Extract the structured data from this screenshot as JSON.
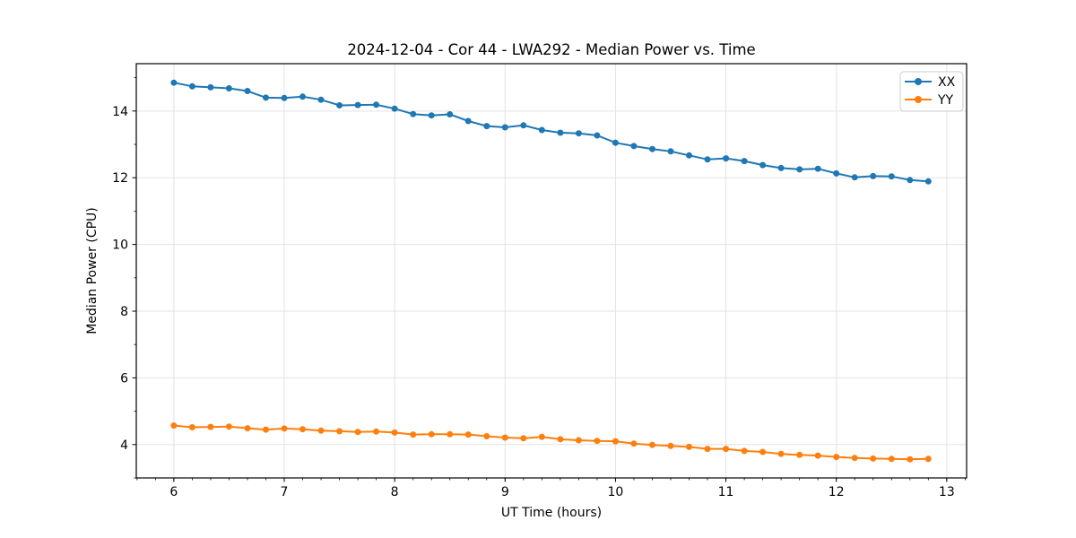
{
  "chart": {
    "title": "2024-12-04 - Cor 44 - LWA292 - Median Power vs. Time",
    "xlabel": "UT Time (hours)",
    "ylabel": "Median Power (CPU)"
  },
  "chart_data": {
    "type": "line",
    "title": "2024-12-04 - Cor 44 - LWA292 - Median Power vs. Time",
    "xlabel": "UT Time (hours)",
    "ylabel": "Median Power (CPU)",
    "x": [
      6.0,
      6.1667,
      6.3333,
      6.5,
      6.6667,
      6.8333,
      7.0,
      7.1667,
      7.3333,
      7.5,
      7.6667,
      7.8333,
      8.0,
      8.1667,
      8.3333,
      8.5,
      8.6667,
      8.8333,
      9.0,
      9.1667,
      9.3333,
      9.5,
      9.6667,
      9.8333,
      10.0,
      10.1667,
      10.3333,
      10.5,
      10.6667,
      10.8333,
      11.0,
      11.1667,
      11.3333,
      11.5,
      11.6667,
      11.8333,
      12.0,
      12.1667,
      12.3333,
      12.5,
      12.6667,
      12.8333
    ],
    "series": [
      {
        "name": "XX",
        "color": "#1f77b4",
        "marker": "circle",
        "values": [
          14.85,
          14.74,
          14.71,
          14.68,
          14.6,
          14.4,
          14.39,
          14.43,
          14.34,
          14.17,
          14.18,
          14.19,
          14.07,
          13.91,
          13.87,
          13.9,
          13.7,
          13.55,
          13.51,
          13.57,
          13.43,
          13.35,
          13.33,
          13.27,
          13.05,
          12.95,
          12.86,
          12.79,
          12.67,
          12.55,
          12.58,
          12.5,
          12.38,
          12.29,
          12.25,
          12.27,
          12.13,
          12.01,
          12.05,
          12.04,
          11.93,
          11.89
        ]
      },
      {
        "name": "YY",
        "color": "#ff7f0e",
        "marker": "circle",
        "values": [
          4.57,
          4.52,
          4.53,
          4.54,
          4.49,
          4.45,
          4.48,
          4.46,
          4.42,
          4.4,
          4.38,
          4.39,
          4.36,
          4.3,
          4.31,
          4.31,
          4.3,
          4.25,
          4.21,
          4.19,
          4.23,
          4.16,
          4.13,
          4.11,
          4.1,
          4.03,
          3.99,
          3.96,
          3.93,
          3.87,
          3.87,
          3.81,
          3.78,
          3.72,
          3.69,
          3.67,
          3.63,
          3.6,
          3.58,
          3.57,
          3.56,
          3.57
        ]
      }
    ],
    "xlim": [
      5.66,
      13.18
    ],
    "ylim": [
      3.0,
      15.42
    ],
    "xticks": [
      6,
      7,
      8,
      9,
      10,
      11,
      12,
      13
    ],
    "xtick_labels": [
      "6",
      "7",
      "8",
      "9",
      "10",
      "11",
      "12",
      "13"
    ],
    "yticks": [
      4,
      6,
      8,
      10,
      12,
      14
    ],
    "ytick_labels": [
      "4",
      "6",
      "8",
      "10",
      "12",
      "14"
    ],
    "x_minor_step": 0.166667,
    "y_minor_step": 1.0,
    "grid": "major",
    "grid_color": "#e3e3e3",
    "spine_color": "#000000",
    "tick_label_color": "#000000",
    "legend": {
      "position": "upper right",
      "labels": [
        "XX",
        "YY"
      ],
      "border_color": "#cccccc",
      "background": "#ffffff"
    },
    "background": "#ffffff"
  }
}
